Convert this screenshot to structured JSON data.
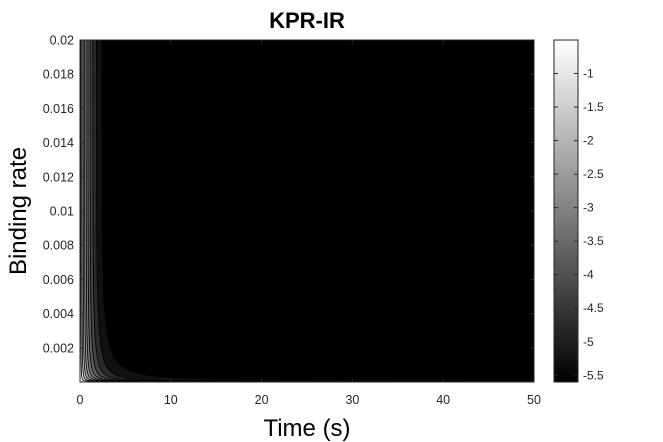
{
  "chart_data": {
    "type": "heatmap",
    "title": "KPR-IR",
    "xlabel": "Time (s)",
    "ylabel": "Binding rate",
    "xlim": [
      0,
      50
    ],
    "ylim": [
      0,
      0.02
    ],
    "x_ticks": [
      "0",
      "10",
      "20",
      "30",
      "40",
      "50"
    ],
    "x_tick_values": [
      0,
      10,
      20,
      30,
      40,
      50
    ],
    "y_ticks": [
      "0.002",
      "0.004",
      "0.006",
      "0.008",
      "0.01",
      "0.012",
      "0.014",
      "0.016",
      "0.018",
      "0.02"
    ],
    "y_tick_values": [
      0.002,
      0.004,
      0.006,
      0.008,
      0.01,
      0.012,
      0.014,
      0.016,
      0.018,
      0.02
    ],
    "colorbar": {
      "range": [
        -5.6,
        -0.5
      ],
      "ticks": [
        "-1",
        "-1.5",
        "-2",
        "-2.5",
        "-3",
        "-3.5",
        "-4",
        "-4.5",
        "-5",
        "-5.5"
      ],
      "tick_values": [
        -1,
        -1.5,
        -2,
        -2.5,
        -3,
        -3.5,
        -4,
        -4.5,
        -5,
        -5.5
      ],
      "colormap": "gray"
    },
    "contour_levels": [
      -1,
      -1.5,
      -2,
      -2.5,
      -3,
      -3.5,
      -4,
      -4.5,
      -5,
      -5.5
    ],
    "grid": false
  }
}
